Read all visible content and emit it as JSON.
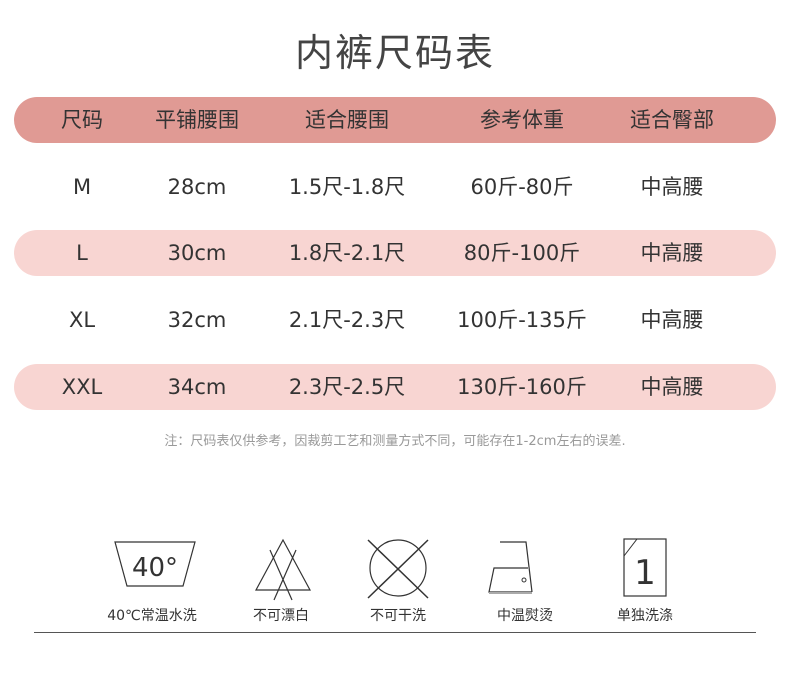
{
  "title": "内裤尺码表",
  "header": [
    "尺码",
    "平铺腰围",
    "适合腰围",
    "参考体重",
    "适合臀部"
  ],
  "rows": [
    [
      "M",
      "28cm",
      "1.5尺-1.8尺",
      "60斤-80斤",
      "中高腰"
    ],
    [
      "L",
      "30cm",
      "1.8尺-2.1尺",
      "80斤-100斤",
      "中高腰"
    ],
    [
      "XL",
      "32cm",
      "2.1尺-2.3尺",
      "100斤-135斤",
      "中高腰"
    ],
    [
      "XXL",
      "34cm",
      "2.3尺-2.5尺",
      "130斤-160斤",
      "中高腰"
    ]
  ],
  "note": "注：尺码表仅供参考，因裁剪工艺和测量方式不同，可能存在1-2cm左右的误差.",
  "care": [
    {
      "icon": "wash-40-icon",
      "text": "40°",
      "label": "40℃常温水洗"
    },
    {
      "icon": "no-bleach-icon",
      "label": "不可漂白"
    },
    {
      "icon": "no-dry-clean-icon",
      "label": "不可干洗"
    },
    {
      "icon": "iron-medium-icon",
      "label": "中温熨烫"
    },
    {
      "icon": "wash-separately-icon",
      "text": "1",
      "label": "单独洗涤"
    }
  ],
  "colors": {
    "header": "#e09a94",
    "alt_row": "#f8d5d2"
  }
}
